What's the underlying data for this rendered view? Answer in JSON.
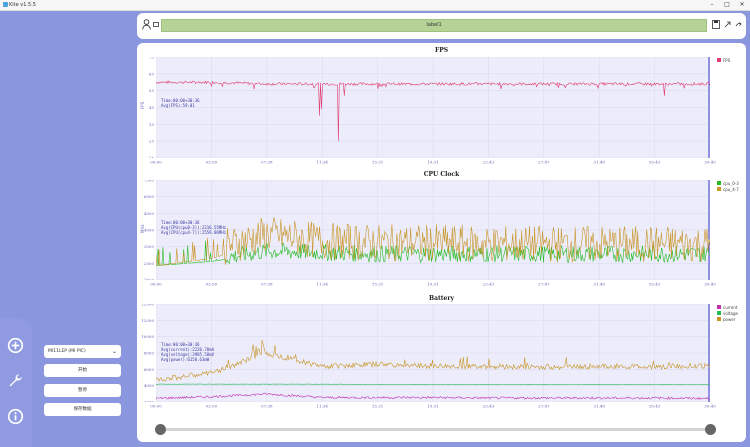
{
  "window": {
    "title": "Kite v1.5.5"
  },
  "toolbar": {
    "center_label": "label1"
  },
  "controls": {
    "device_select": "MI11LEP (MI PIC)",
    "start_label": "开始",
    "pause_label": "暂停",
    "save_label": "保存数据"
  },
  "time_ticks": [
    "00:00",
    "03:50",
    "07:38",
    "11:34",
    "15:31",
    "19:31",
    "23:43",
    "27:47",
    "31:48",
    "35:43",
    "39:40"
  ],
  "charts": {
    "fps": {
      "title": "FPS",
      "ylabel": "FPS",
      "yticks": [
        "75",
        "65",
        "55",
        "45",
        "35",
        "25",
        "15"
      ],
      "ylim": [
        15,
        75
      ],
      "legend": [
        {
          "name": "FPS",
          "color": "#e03c6e"
        }
      ],
      "annotation": [
        "Time:00:00+30:36",
        "Avg(FPS):59.01"
      ]
    },
    "cpu": {
      "title": "CPU Clock",
      "ylabel": "MHz",
      "yticks": [
        "7500",
        "6500",
        "4500",
        "4000",
        "3500",
        "2500",
        "1500"
      ],
      "ylim": [
        500,
        7500
      ],
      "legend": [
        {
          "name": "cpu_0-3",
          "color": "#22bb22"
        },
        {
          "name": "cpu_4-7",
          "color": "#c89628"
        }
      ],
      "annotation": [
        "Time:00:00+30:36",
        "Avg(CPU(cpu0-3)):2216.55MHz",
        "Avg(CPU(cpu4-7)):2559.06MHz"
      ]
    },
    "battery": {
      "title": "Battery",
      "ylabel": "",
      "yticks": [
        "22000",
        "12000",
        "10000",
        "8000",
        "6000",
        "4000",
        "2000"
      ],
      "ylim": [
        0,
        22000
      ],
      "legend": [
        {
          "name": "current",
          "color": "#c030b0"
        },
        {
          "name": "voltage",
          "color": "#22bb55"
        },
        {
          "name": "power",
          "color": "#c89628"
        }
      ],
      "annotation": [
        "Time:00:00+30:36",
        "Avg(current):2220.70mA",
        "Avg(voltage):3985.58mV",
        "Avg(power):6150.63mW"
      ]
    }
  },
  "chart_data": [
    {
      "type": "line",
      "title": "FPS",
      "ylabel": "FPS",
      "ylim": [
        15,
        75
      ],
      "x_ticks": [
        "00:00",
        "03:50",
        "07:38",
        "11:34",
        "15:31",
        "19:31",
        "23:43",
        "27:47",
        "31:48",
        "35:43",
        "39:40"
      ],
      "series": [
        {
          "name": "FPS",
          "values": [
            60,
            60,
            59,
            59,
            59,
            59,
            59,
            59,
            59,
            59,
            59
          ]
        }
      ]
    },
    {
      "type": "line",
      "title": "CPU Clock",
      "ylabel": "MHz",
      "ylim": [
        500,
        7500
      ],
      "x_ticks": [
        "00:00",
        "03:50",
        "07:38",
        "11:34",
        "15:31",
        "19:31",
        "23:43",
        "27:47",
        "31:48",
        "35:43",
        "39:40"
      ],
      "series": [
        {
          "name": "cpu_0-3",
          "values": [
            1500,
            1800,
            2400,
            2300,
            2200,
            2200,
            2200,
            2200,
            2200,
            2200,
            2200
          ]
        },
        {
          "name": "cpu_4-7",
          "values": [
            1500,
            2000,
            3200,
            2700,
            2600,
            2600,
            2500,
            2500,
            2500,
            2500,
            2500
          ]
        }
      ]
    },
    {
      "type": "line",
      "title": "Battery",
      "ylim": [
        0,
        22000
      ],
      "x_ticks": [
        "00:00",
        "03:50",
        "07:38",
        "11:34",
        "15:31",
        "19:31",
        "23:43",
        "27:47",
        "31:48",
        "35:43",
        "39:40"
      ],
      "series": [
        {
          "name": "current",
          "values": [
            800,
            1200,
            1800,
            1000,
            1000,
            1000,
            900,
            900,
            900,
            900,
            800
          ]
        },
        {
          "name": "voltage",
          "values": [
            4000,
            4000,
            4000,
            4000,
            3950,
            3950,
            3950,
            3950,
            3900,
            3900,
            3900
          ]
        },
        {
          "name": "power",
          "values": [
            5000,
            6500,
            11000,
            8000,
            8500,
            8000,
            8000,
            7800,
            8000,
            7900,
            8200
          ]
        }
      ]
    }
  ]
}
